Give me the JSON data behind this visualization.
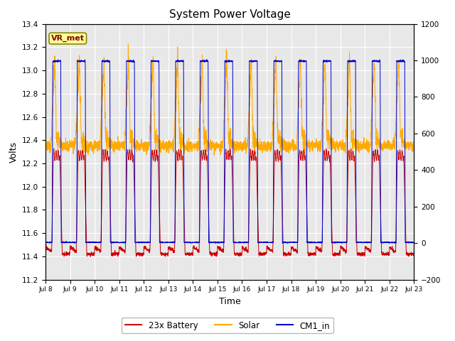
{
  "title": "System Power Voltage",
  "xlabel": "Time",
  "ylabel": "Volts",
  "ylim_left": [
    11.2,
    13.4
  ],
  "ylim_right": [
    -200,
    1200
  ],
  "yticks_left": [
    11.2,
    11.4,
    11.6,
    11.8,
    12.0,
    12.2,
    12.4,
    12.6,
    12.8,
    13.0,
    13.2,
    13.4
  ],
  "yticks_right": [
    -200,
    0,
    200,
    400,
    600,
    800,
    1000,
    1200
  ],
  "xtick_labels": [
    "Jul 8",
    "Jul 9",
    "Jul 10",
    "Jul 11",
    "Jul 12",
    "Jul 13",
    "Jul 14",
    "Jul 15",
    "Jul 16",
    "Jul 17",
    "Jul 18",
    "Jul 19",
    "Jul 20",
    "Jul 21",
    "Jul 22",
    "Jul 23"
  ],
  "fig_bg_color": "#ffffff",
  "plot_bg_color": "#e8e8e8",
  "annotation_text": "VR_met",
  "annotation_bg": "#ffff99",
  "annotation_border": "#888800",
  "line_23x_color": "#cc0000",
  "line_solar_color": "#ffaa00",
  "line_cm1_color": "#0000cc",
  "legend_labels": [
    "23x Battery",
    "Solar",
    "CM1_in"
  ],
  "num_days": 15,
  "n_points": 3000
}
